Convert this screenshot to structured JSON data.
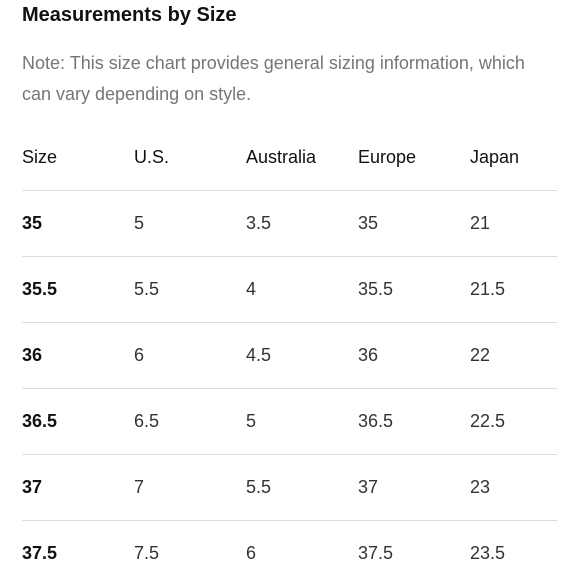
{
  "title": "Measurements by Size",
  "note": "Note: This size chart provides general sizing information, which can vary depending on style.",
  "table": {
    "headers": [
      "Size",
      "U.S.",
      "Australia",
      "Europe",
      "Japan"
    ],
    "rows": [
      [
        "35",
        "5",
        "3.5",
        "35",
        "21"
      ],
      [
        "35.5",
        "5.5",
        "4",
        "35.5",
        "21.5"
      ],
      [
        "36",
        "6",
        "4.5",
        "36",
        "22"
      ],
      [
        "36.5",
        "6.5",
        "5",
        "36.5",
        "22.5"
      ],
      [
        "37",
        "7",
        "5.5",
        "37",
        "23"
      ],
      [
        "37.5",
        "7.5",
        "6",
        "37.5",
        "23.5"
      ]
    ]
  }
}
